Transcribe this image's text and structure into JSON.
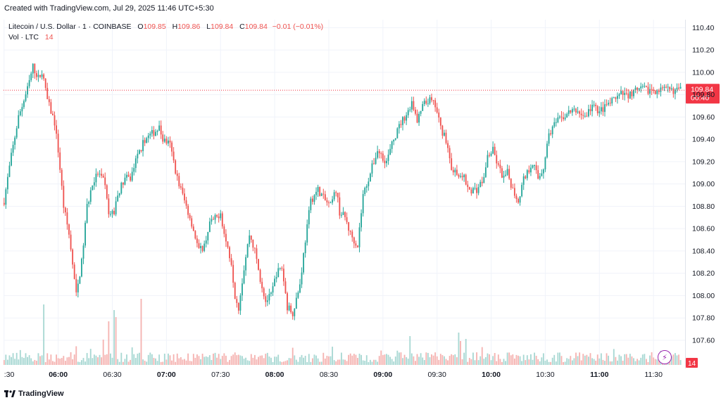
{
  "header": {
    "credit": "Created with TradingView.com, Jul 29, 2025 11:46 UTC+5:30"
  },
  "legend": {
    "symbol": "Litecoin / U.S. Dollar · 1 · COINBASE",
    "open_label": "O",
    "open": "109.85",
    "high_label": "H",
    "high": "109.86",
    "low_label": "L",
    "low": "109.84",
    "close_label": "C",
    "close": "109.84",
    "change": "−0.01 (−0.01%)",
    "vol_label": "Vol · LTC",
    "vol_value": "14"
  },
  "footer": {
    "brand": "TradingView"
  },
  "colors": {
    "up": "#26a69a",
    "down": "#ef5350",
    "badge": "#f23645",
    "grid": "#f0f3fa"
  },
  "chart_data": {
    "type": "candlestick",
    "title": "Litecoin / U.S. Dollar · 1 · COINBASE",
    "xlabel": "",
    "ylabel": "",
    "y_ticks": [
      "110.40",
      "110.20",
      "110.00",
      "109.80",
      "109.60",
      "109.40",
      "109.20",
      "109.00",
      "108.80",
      "108.60",
      "108.40",
      "108.20",
      "108.00",
      "107.80",
      "107.60"
    ],
    "ylim": [
      107.48,
      110.44
    ],
    "x_ticks": [
      {
        "label": ":30",
        "minute": 0
      },
      {
        "label": "06:00",
        "minute": 30
      },
      {
        "label": "06:30",
        "minute": 60
      },
      {
        "label": "07:00",
        "minute": 90
      },
      {
        "label": "07:30",
        "minute": 120
      },
      {
        "label": "08:00",
        "minute": 150
      },
      {
        "label": "08:30",
        "minute": 180
      },
      {
        "label": "09:00",
        "minute": 210
      },
      {
        "label": "09:30",
        "minute": 240
      },
      {
        "label": "10:00",
        "minute": 270
      },
      {
        "label": "10:30",
        "minute": 300
      },
      {
        "label": "11:00",
        "minute": 330
      },
      {
        "label": "11:30",
        "minute": 360
      }
    ],
    "x_range_minutes": [
      -0.3,
      377.5
    ],
    "candle_count": 376,
    "close_path": [
      [
        0,
        108.85
      ],
      [
        4,
        109.25
      ],
      [
        8,
        109.6
      ],
      [
        13,
        109.85
      ],
      [
        16,
        110.05
      ],
      [
        19,
        109.95
      ],
      [
        21,
        110.0
      ],
      [
        24,
        109.75
      ],
      [
        28,
        109.55
      ],
      [
        30,
        109.3
      ],
      [
        33,
        108.8
      ],
      [
        36,
        108.55
      ],
      [
        40,
        108.0
      ],
      [
        43,
        108.3
      ],
      [
        46,
        108.8
      ],
      [
        49,
        109.0
      ],
      [
        52,
        109.1
      ],
      [
        56,
        109.0
      ],
      [
        58,
        108.7
      ],
      [
        61,
        108.75
      ],
      [
        64,
        108.95
      ],
      [
        67,
        109.05
      ],
      [
        70,
        109.05
      ],
      [
        74,
        109.25
      ],
      [
        78,
        109.4
      ],
      [
        82,
        109.45
      ],
      [
        86,
        109.5
      ],
      [
        88,
        109.4
      ],
      [
        92,
        109.35
      ],
      [
        96,
        109.05
      ],
      [
        100,
        108.85
      ],
      [
        104,
        108.65
      ],
      [
        108,
        108.4
      ],
      [
        111,
        108.45
      ],
      [
        114,
        108.65
      ],
      [
        118,
        108.7
      ],
      [
        120,
        108.75
      ],
      [
        122,
        108.55
      ],
      [
        126,
        108.3
      ],
      [
        128,
        108.0
      ],
      [
        130,
        107.9
      ],
      [
        133,
        108.25
      ],
      [
        136,
        108.55
      ],
      [
        139,
        108.4
      ],
      [
        142,
        108.15
      ],
      [
        145,
        107.95
      ],
      [
        148,
        108.0
      ],
      [
        151,
        108.2
      ],
      [
        154,
        108.25
      ],
      [
        157,
        107.9
      ],
      [
        160,
        107.85
      ],
      [
        164,
        108.1
      ],
      [
        167,
        108.5
      ],
      [
        170,
        108.85
      ],
      [
        174,
        108.95
      ],
      [
        178,
        108.85
      ],
      [
        181,
        108.8
      ],
      [
        184,
        108.95
      ],
      [
        186,
        108.75
      ],
      [
        189,
        108.7
      ],
      [
        192,
        108.55
      ],
      [
        196,
        108.45
      ],
      [
        199,
        108.9
      ],
      [
        203,
        109.1
      ],
      [
        207,
        109.3
      ],
      [
        212,
        109.2
      ],
      [
        216,
        109.4
      ],
      [
        220,
        109.55
      ],
      [
        224,
        109.65
      ],
      [
        226,
        109.75
      ],
      [
        229,
        109.55
      ],
      [
        232,
        109.7
      ],
      [
        236,
        109.75
      ],
      [
        239,
        109.7
      ],
      [
        242,
        109.5
      ],
      [
        245,
        109.4
      ],
      [
        248,
        109.15
      ],
      [
        252,
        109.05
      ],
      [
        255,
        109.05
      ],
      [
        258,
        108.95
      ],
      [
        262,
        108.95
      ],
      [
        266,
        109.05
      ],
      [
        268,
        109.25
      ],
      [
        271,
        109.3
      ],
      [
        274,
        109.15
      ],
      [
        277,
        109.05
      ],
      [
        279,
        109.1
      ],
      [
        282,
        108.95
      ],
      [
        285,
        108.85
      ],
      [
        288,
        109.05
      ],
      [
        290,
        109.1
      ],
      [
        293,
        109.2
      ],
      [
        296,
        109.05
      ],
      [
        299,
        109.15
      ],
      [
        302,
        109.45
      ],
      [
        306,
        109.55
      ],
      [
        310,
        109.6
      ],
      [
        314,
        109.65
      ],
      [
        318,
        109.65
      ],
      [
        322,
        109.6
      ],
      [
        326,
        109.7
      ],
      [
        330,
        109.65
      ],
      [
        334,
        109.7
      ],
      [
        338,
        109.75
      ],
      [
        342,
        109.8
      ],
      [
        346,
        109.8
      ],
      [
        350,
        109.83
      ],
      [
        354,
        109.85
      ],
      [
        358,
        109.84
      ],
      [
        375,
        109.84
      ]
    ],
    "volume_spikes": [
      {
        "minute": 22,
        "value": 86,
        "dir": "up"
      },
      {
        "minute": 55,
        "value": 36,
        "dir": "down"
      },
      {
        "minute": 58,
        "value": 62,
        "dir": "down"
      },
      {
        "minute": 61,
        "value": 78,
        "dir": "up"
      },
      {
        "minute": 62,
        "value": 68,
        "dir": "down"
      },
      {
        "minute": 76,
        "value": 94,
        "dir": "down"
      },
      {
        "minute": 225,
        "value": 41,
        "dir": "up"
      },
      {
        "minute": 252,
        "value": 46,
        "dir": "up"
      },
      {
        "minute": 253,
        "value": 34,
        "dir": "down"
      },
      {
        "minute": 256,
        "value": 37,
        "dir": "up"
      }
    ],
    "current_price": {
      "value": "109.84",
      "countdown": "00:40"
    },
    "volume_badge": "14"
  }
}
